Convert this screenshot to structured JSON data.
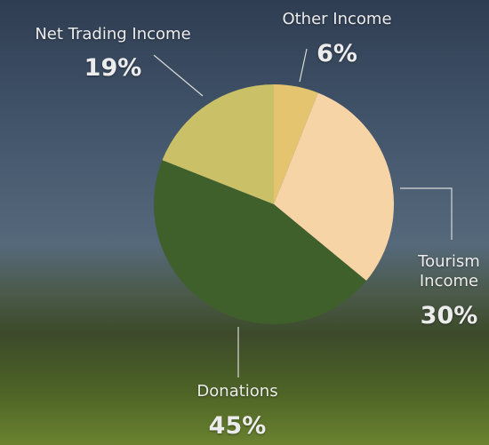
{
  "chart_data": {
    "type": "pie",
    "categories": [
      "Other Income",
      "Tourism Income",
      "Donations",
      "Net Trading Income"
    ],
    "values": [
      6,
      30,
      45,
      19
    ],
    "value_labels": [
      "6%",
      "30%",
      "45%",
      "19%"
    ],
    "colors": [
      "#e4c46f",
      "#f7d4a6",
      "#3f5f2b",
      "#c9c068"
    ]
  }
}
